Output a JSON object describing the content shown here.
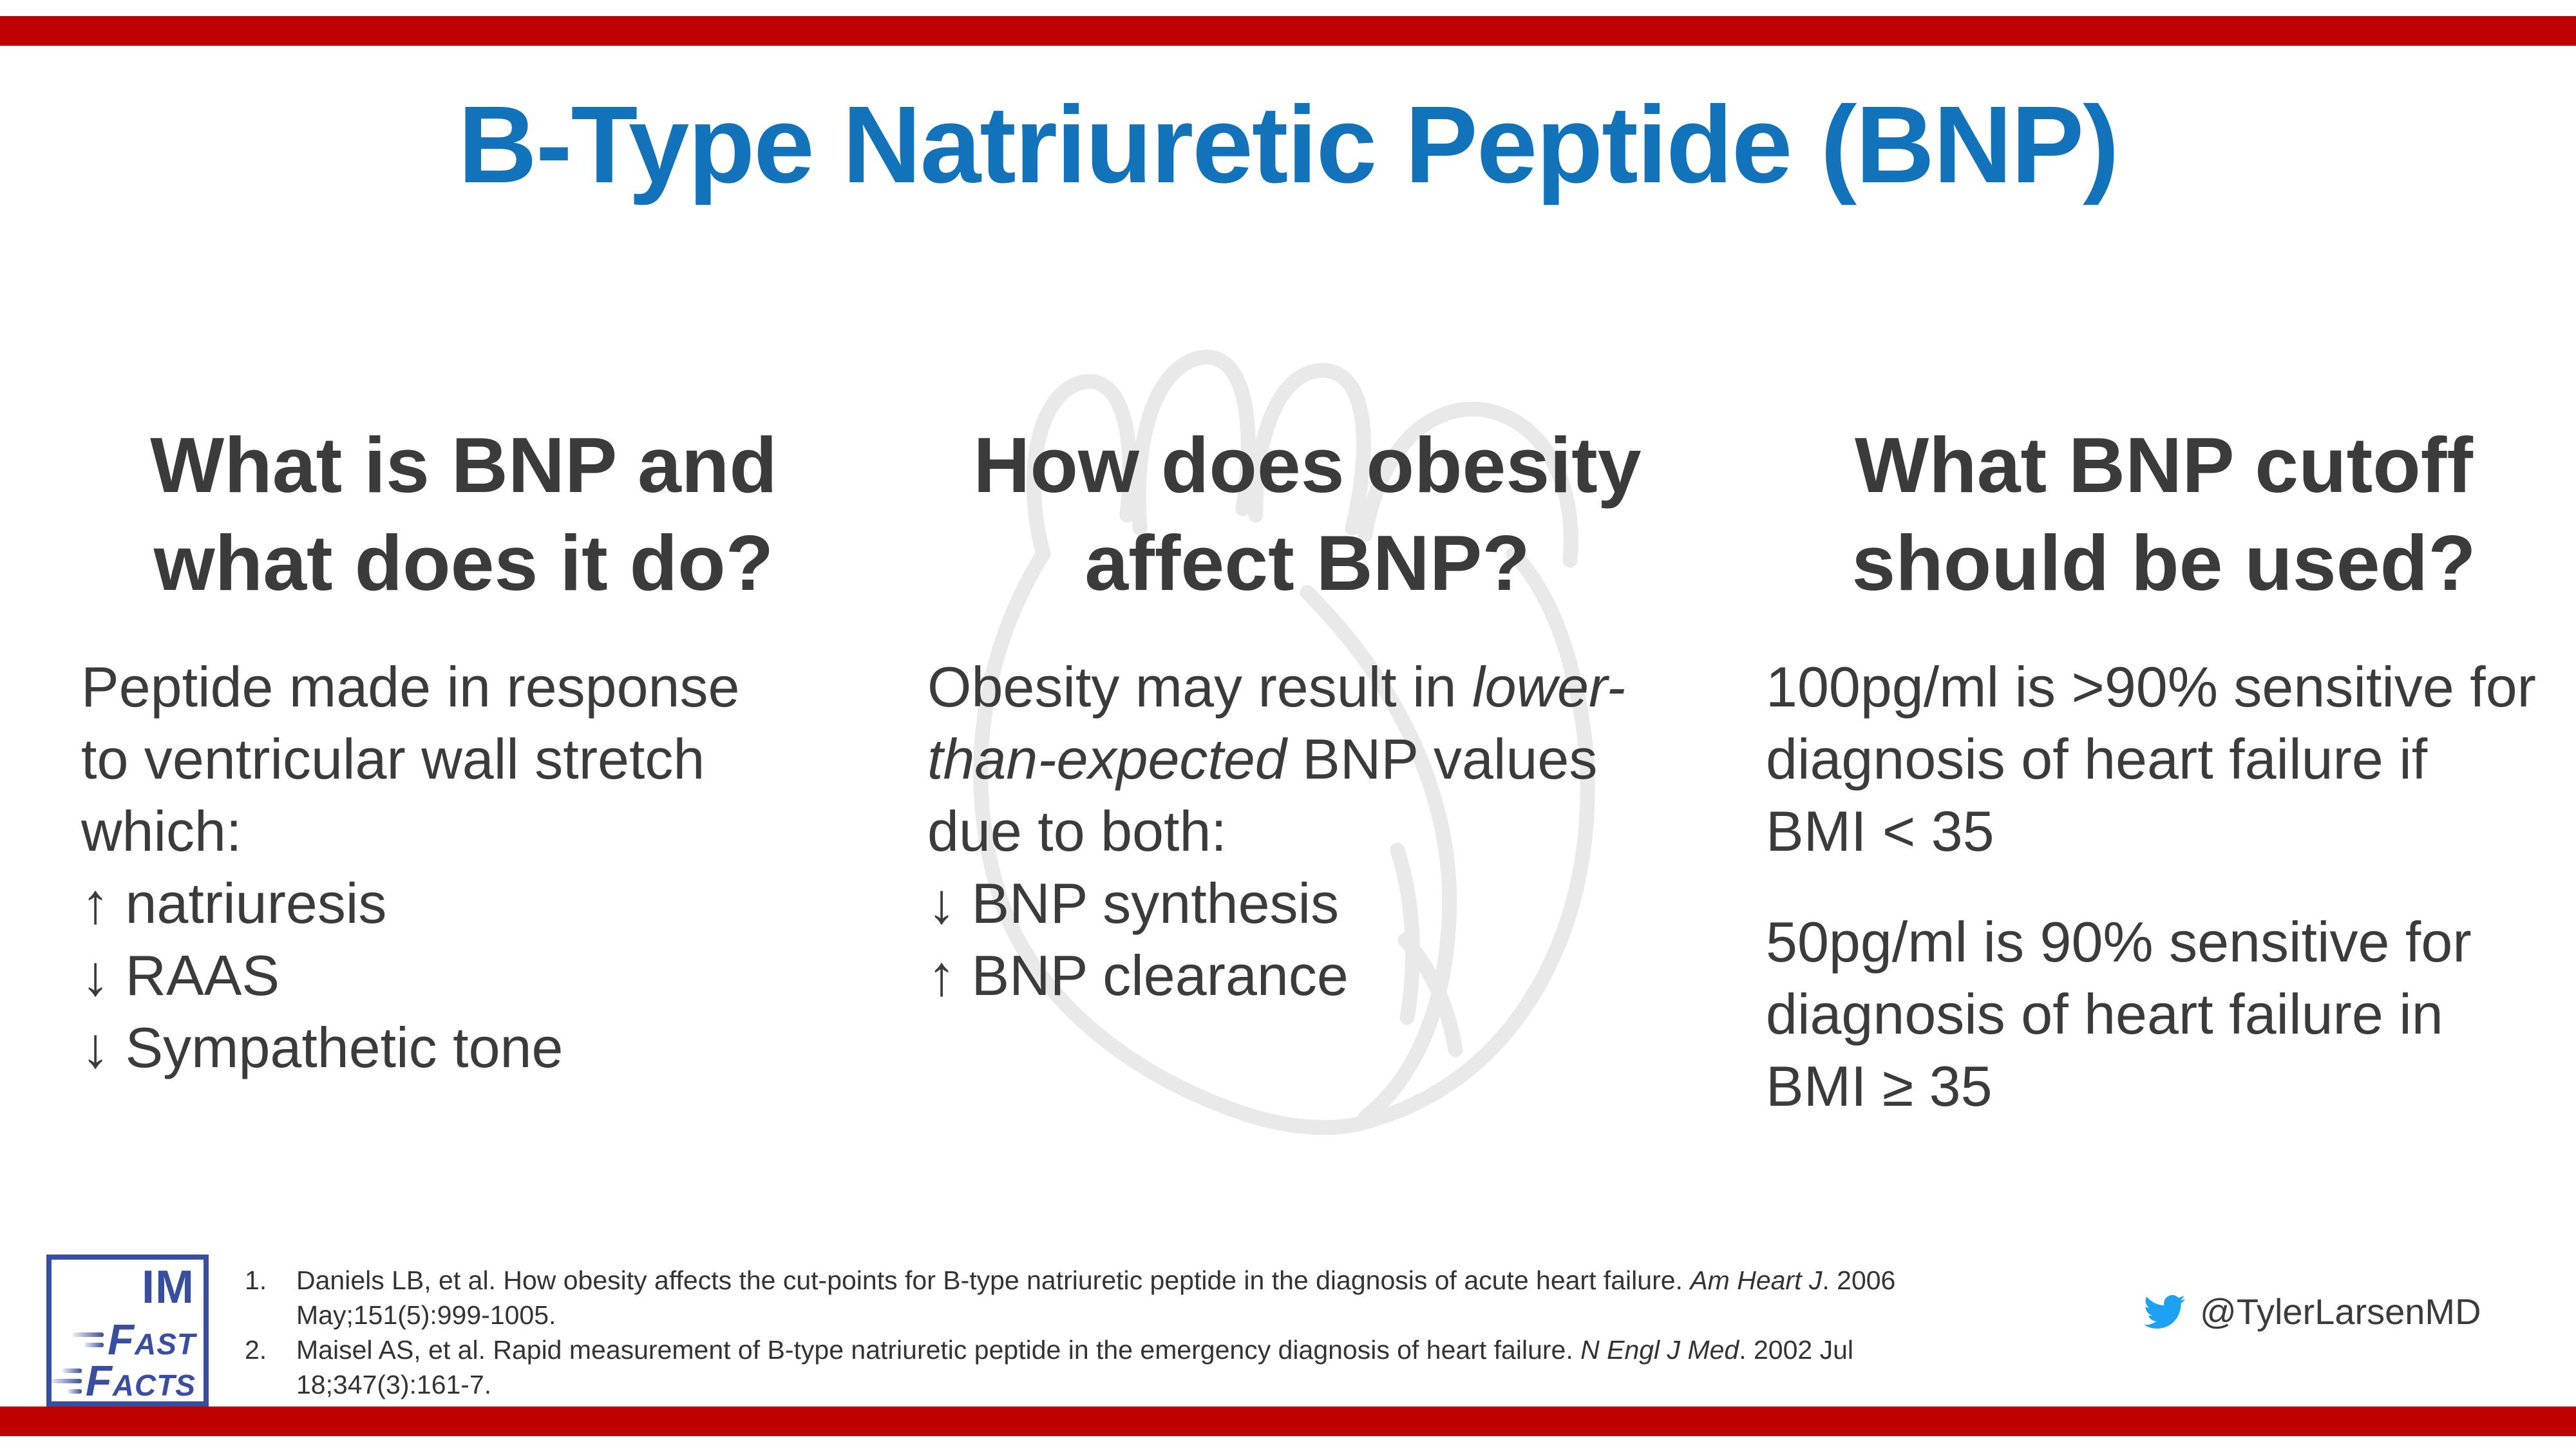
{
  "colors": {
    "title_blue": "#1272BA",
    "bar_red": "#C00000",
    "text_gray": "#3B3B3B",
    "reference_gray": "#333333",
    "logo_blue": "#3A4E9F",
    "twitter_blue": "#1DA1F2",
    "heart_gray": "#E9E9E9"
  },
  "title": "B-Type Natriuretic Peptide (BNP)",
  "columns": [
    {
      "heading": "What is BNP and\nwhat does it do?",
      "body": "Peptide made in response\nto ventricular wall stretch\nwhich:\n↑ natriuresis\n↓ RAAS\n↓ Sympathetic tone"
    },
    {
      "heading": "How does obesity\naffect BNP?",
      "body_runs": [
        {
          "t": "Obesity may result in ",
          "i": false
        },
        {
          "t": "lower-\nthan-expected",
          "i": true
        },
        {
          "t": " BNP values\ndue to both:\n↓ BNP synthesis\n↑ BNP clearance",
          "i": false
        }
      ]
    },
    {
      "heading": "What BNP cutoff\nshould be used?",
      "paragraphs": [
        "100pg/ml is >90% sensitive for\ndiagnosis of heart failure if\nBMI < 35",
        "50pg/ml is 90% sensitive for\ndiagnosis of heart failure in\nBMI ≥ 35"
      ]
    }
  ],
  "references": {
    "items": [
      {
        "number": "1.",
        "runs": [
          {
            "t": "Daniels LB, et al. How obesity affects the cut-points for B-type natriuretic peptide in the diagnosis of acute heart failure. ",
            "i": false
          },
          {
            "t": "Am Heart J",
            "i": true
          },
          {
            "t": ". 2006\nMay;151(5):999-1005.",
            "i": false
          }
        ]
      },
      {
        "number": "2.",
        "runs": [
          {
            "t": "Maisel AS, et al. Rapid measurement of B-type natriuretic peptide in the emergency diagnosis of heart failure. ",
            "i": false
          },
          {
            "t": "N Engl J Med",
            "i": true
          },
          {
            "t": ". 2002 Jul\n18;347(3):161-7.",
            "i": false
          }
        ]
      }
    ]
  },
  "logo": {
    "line1": "IM",
    "line2": "FAST",
    "line3": "FACTS"
  },
  "social": {
    "handle": "@TylerLarsenMD"
  },
  "icons": {
    "social": "twitter-bird-icon",
    "logo_speed": "speed-lines-icon",
    "background": "heart-line-art"
  }
}
